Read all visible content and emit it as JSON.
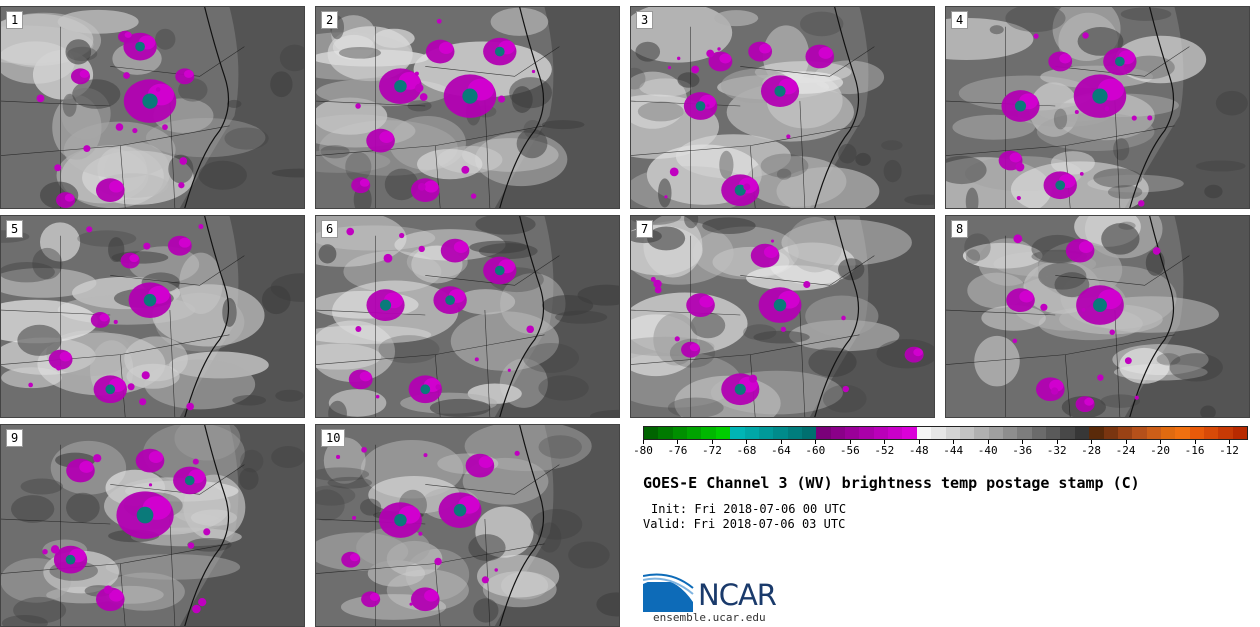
{
  "panels": [
    "1",
    "2",
    "3",
    "4",
    "5",
    "6",
    "7",
    "8",
    "9",
    "10"
  ],
  "colorbar": {
    "colors": [
      "#006400",
      "#007a00",
      "#008f00",
      "#00a300",
      "#00b800",
      "#00cc00",
      "#00b5b5",
      "#00a7a7",
      "#009999",
      "#008b8b",
      "#007d7d",
      "#006f6f",
      "#7a0079",
      "#8a0089",
      "#9a0099",
      "#aa00a9",
      "#ba00b9",
      "#ca00c9",
      "#da00d9",
      "#f5f5f5",
      "#e6e6e6",
      "#d4d4d4",
      "#c3c3c3",
      "#b1b1b1",
      "#a0a0a0",
      "#8e8e8e",
      "#7d7d7d",
      "#6b6b6b",
      "#5a5a5a",
      "#484848",
      "#373737",
      "#5a2a0a",
      "#7a3510",
      "#9a4215",
      "#b5501a",
      "#cc5e18",
      "#e06a10",
      "#f07010",
      "#e85a0a",
      "#d84a08",
      "#c83a05",
      "#b82a00"
    ],
    "ticks": [
      "-80",
      "-76",
      "-72",
      "-68",
      "-64",
      "-60",
      "-56",
      "-52",
      "-48",
      "-44",
      "-40",
      "-36",
      "-32",
      "-28",
      "-24",
      "-20",
      "-16",
      "-12"
    ]
  },
  "title": "GOES-E Channel 3 (WV) brightness temp postage stamp (C)",
  "init": "Init: Fri 2018-07-06 00 UTC",
  "valid": "Valid: Fri 2018-07-06 03 UTC",
  "logo_text": "NCAR",
  "url": "ensemble.ucar.edu"
}
